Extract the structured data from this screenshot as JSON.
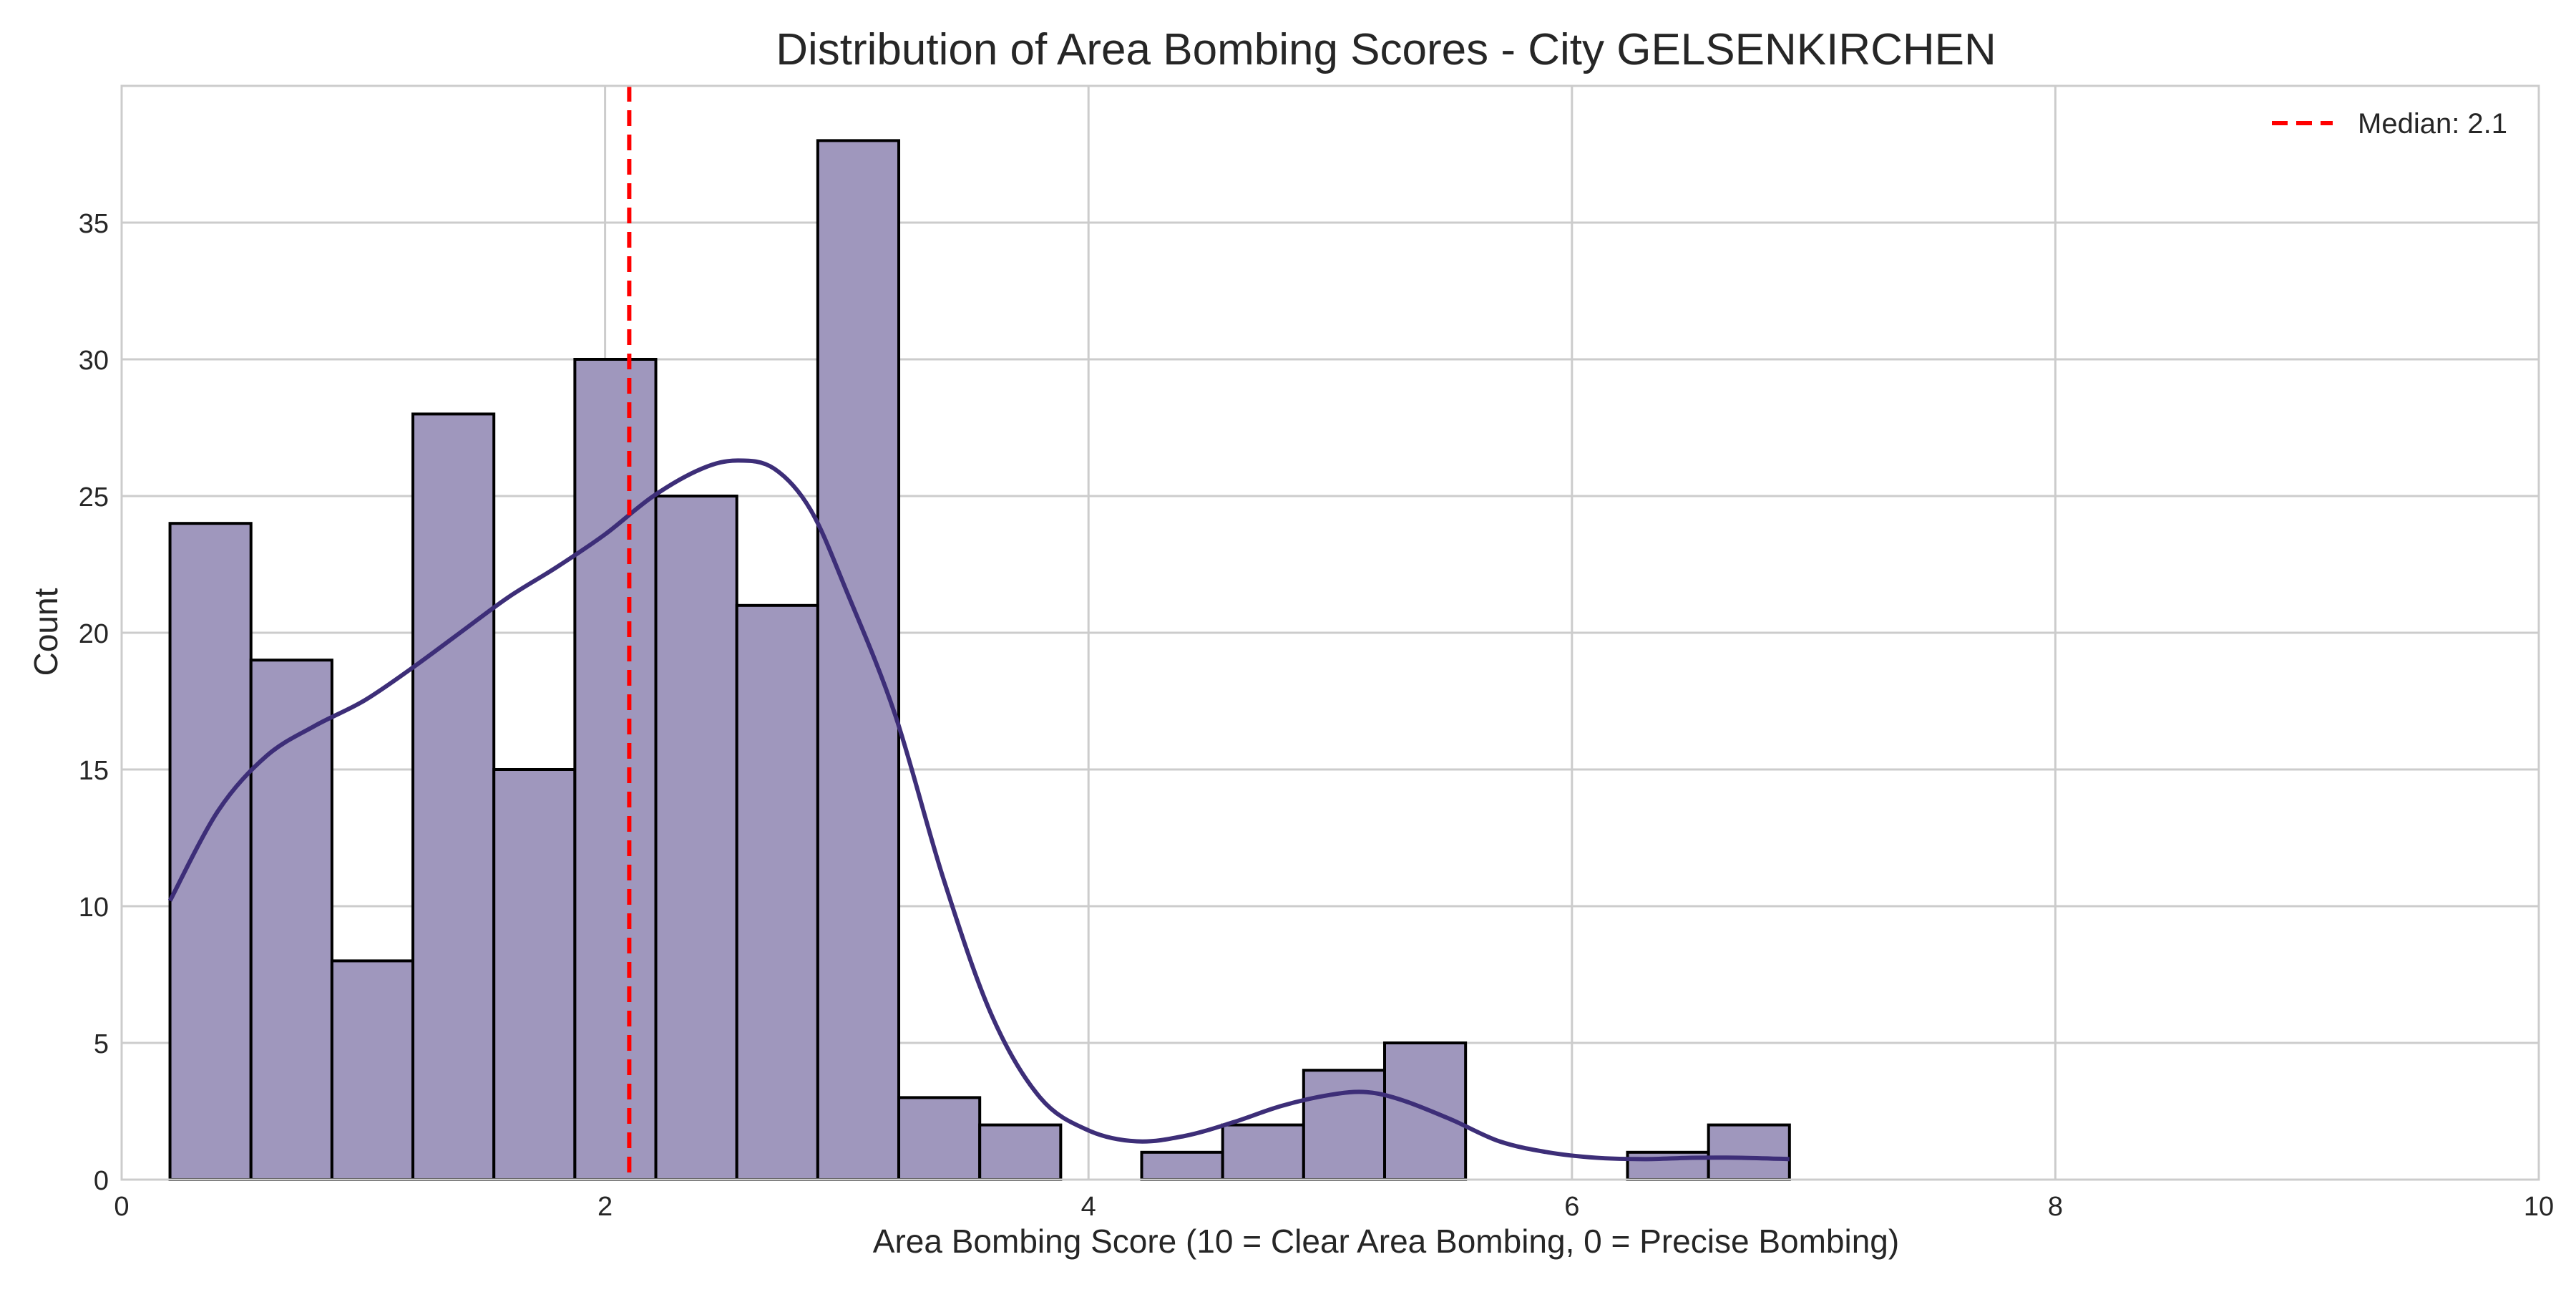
{
  "chart_data": {
    "type": "bar",
    "title": "Distribution of Area Bombing Scores - City GELSENKIRCHEN",
    "xlabel": "Area Bombing Score (10 = Clear Area Bombing, 0 = Precise Bombing)",
    "ylabel": "Count",
    "xlim": [
      0,
      10
    ],
    "ylim": [
      0,
      40
    ],
    "xticks": [
      0,
      2,
      4,
      6,
      8,
      10
    ],
    "yticks": [
      0,
      5,
      10,
      15,
      20,
      25,
      30,
      35
    ],
    "grid": true,
    "bar_color": "#9f97bd",
    "bar_edge_color": "#000000",
    "bins": [
      {
        "x0": 0.2,
        "x1": 0.535,
        "count": 24
      },
      {
        "x0": 0.535,
        "x1": 0.87,
        "count": 19
      },
      {
        "x0": 0.87,
        "x1": 1.205,
        "count": 8
      },
      {
        "x0": 1.205,
        "x1": 1.54,
        "count": 28
      },
      {
        "x0": 1.54,
        "x1": 1.875,
        "count": 15
      },
      {
        "x0": 1.875,
        "x1": 2.21,
        "count": 30
      },
      {
        "x0": 2.21,
        "x1": 2.545,
        "count": 25
      },
      {
        "x0": 2.545,
        "x1": 2.88,
        "count": 21
      },
      {
        "x0": 2.88,
        "x1": 3.215,
        "count": 38
      },
      {
        "x0": 3.215,
        "x1": 3.55,
        "count": 3
      },
      {
        "x0": 3.55,
        "x1": 3.885,
        "count": 2
      },
      {
        "x0": 3.885,
        "x1": 4.22,
        "count": 0
      },
      {
        "x0": 4.22,
        "x1": 4.555,
        "count": 1
      },
      {
        "x0": 4.555,
        "x1": 4.89,
        "count": 2
      },
      {
        "x0": 4.89,
        "x1": 5.225,
        "count": 4
      },
      {
        "x0": 5.225,
        "x1": 5.56,
        "count": 5
      },
      {
        "x0": 5.56,
        "x1": 5.895,
        "count": 0
      },
      {
        "x0": 5.895,
        "x1": 6.23,
        "count": 0
      },
      {
        "x0": 6.23,
        "x1": 6.565,
        "count": 1
      },
      {
        "x0": 6.565,
        "x1": 6.9,
        "count": 2
      }
    ],
    "kde": {
      "color": "#3d2e78",
      "x": [
        0.2,
        0.4,
        0.6,
        0.8,
        1.0,
        1.2,
        1.4,
        1.6,
        1.8,
        2.0,
        2.2,
        2.4,
        2.55,
        2.7,
        2.85,
        3.0,
        3.2,
        3.4,
        3.6,
        3.8,
        4.0,
        4.2,
        4.4,
        4.6,
        4.8,
        5.0,
        5.15,
        5.3,
        5.5,
        5.7,
        5.9,
        6.1,
        6.3,
        6.5,
        6.7,
        6.9
      ],
      "y": [
        10.2,
        13.5,
        15.5,
        16.6,
        17.5,
        18.7,
        20.0,
        21.3,
        22.4,
        23.6,
        25.0,
        26.0,
        26.3,
        26.0,
        24.5,
        21.5,
        17.0,
        11.0,
        6.0,
        3.0,
        1.8,
        1.4,
        1.6,
        2.1,
        2.7,
        3.1,
        3.2,
        2.9,
        2.2,
        1.4,
        1.0,
        0.8,
        0.75,
        0.8,
        0.8,
        0.75
      ]
    },
    "median": {
      "value": 2.1,
      "color": "#ff0000",
      "label": "Median: 2.1"
    },
    "legend": {
      "position": "top-right",
      "entries": [
        "Median: 2.1"
      ]
    }
  }
}
